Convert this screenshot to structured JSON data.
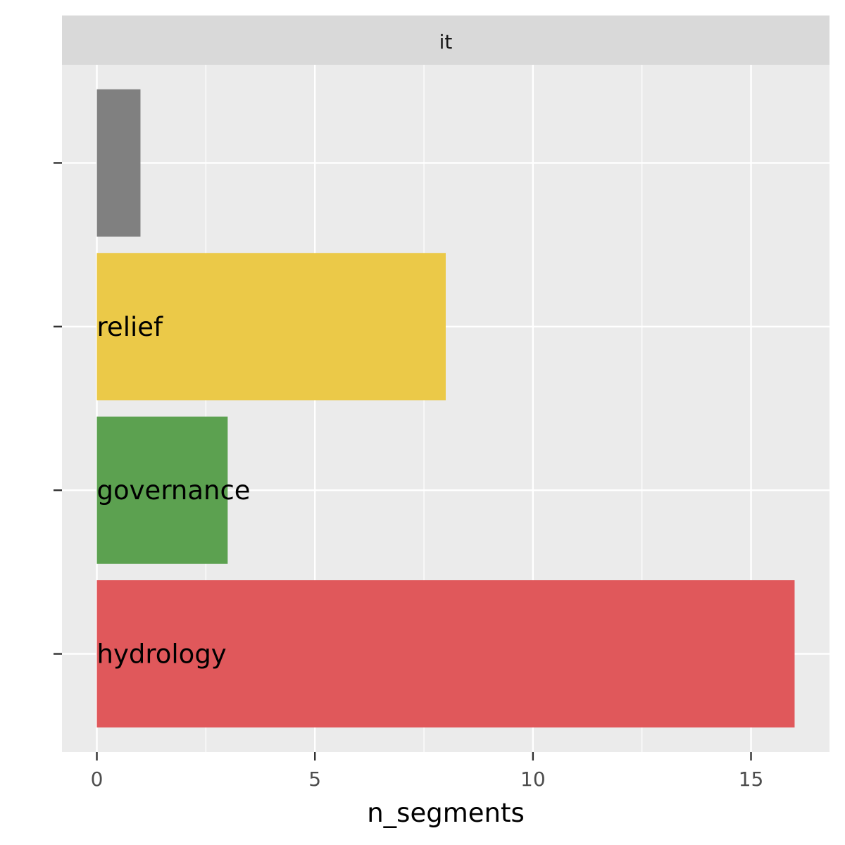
{
  "chart_data": {
    "type": "bar",
    "orientation": "horizontal",
    "facet": "it",
    "xlabel": "n_segments",
    "ylabel": "",
    "xlim": [
      -0.8,
      16.8
    ],
    "x_ticks": [
      0,
      5,
      10,
      15
    ],
    "grid": true,
    "legend": "none",
    "bars": [
      {
        "label": "",
        "value": 1,
        "color": "#808080"
      },
      {
        "label": "relief",
        "value": 8,
        "color": "#ebc948"
      },
      {
        "label": "governance",
        "value": 3,
        "color": "#5ca150"
      },
      {
        "label": "hydrology",
        "value": 16,
        "color": "#e0585b"
      }
    ]
  }
}
